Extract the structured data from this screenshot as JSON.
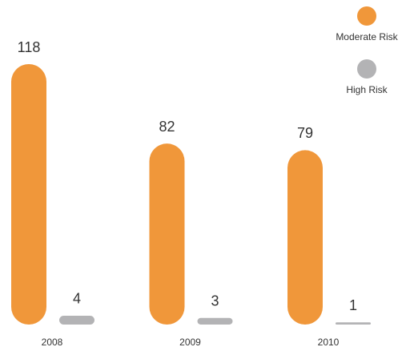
{
  "chart_data": {
    "type": "bar",
    "categories": [
      "2008",
      "2009",
      "2010"
    ],
    "series": [
      {
        "name": "Moderate Risk",
        "color": "#f0973a",
        "values": [
          118,
          82,
          79
        ]
      },
      {
        "name": "High Risk",
        "color": "#b3b3b5",
        "values": [
          4,
          3,
          1
        ]
      }
    ],
    "legend": "top-right"
  }
}
